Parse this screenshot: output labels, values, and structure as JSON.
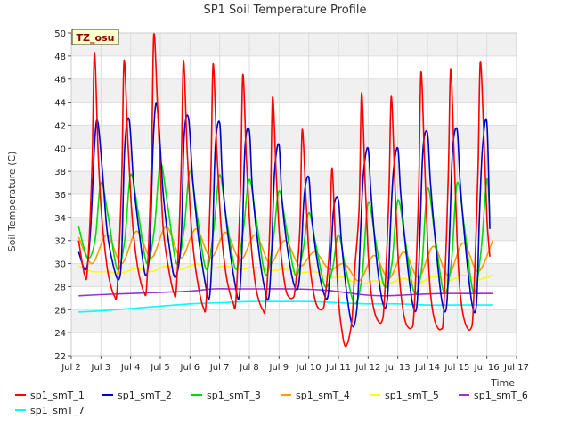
{
  "chart_data": {
    "type": "line",
    "title": "SP1 Soil Temperature Profile",
    "xlabel": "Time",
    "ylabel": "Soil Temperature (C)",
    "site_tag": "TZ_osu",
    "xlim": [
      2,
      17
    ],
    "ylim": [
      22,
      50
    ],
    "x_ticks": [
      {
        "value": 2,
        "label": "Jul 2"
      },
      {
        "value": 3,
        "label": "Jul 3"
      },
      {
        "value": 4,
        "label": "Jul 4"
      },
      {
        "value": 5,
        "label": "Jul 5"
      },
      {
        "value": 6,
        "label": "Jul 6"
      },
      {
        "value": 7,
        "label": "Jul 7"
      },
      {
        "value": 8,
        "label": "Jul 8"
      },
      {
        "value": 9,
        "label": "Jul 9"
      },
      {
        "value": 10,
        "label": "Jul 10"
      },
      {
        "value": 11,
        "label": "Jul 11"
      },
      {
        "value": 12,
        "label": "Jul 12"
      },
      {
        "value": 13,
        "label": "Jul 13"
      },
      {
        "value": 14,
        "label": "Jul 14"
      },
      {
        "value": 15,
        "label": "Jul 15"
      },
      {
        "value": 16,
        "label": "Jul 16"
      },
      {
        "value": 17,
        "label": "Jul 17"
      }
    ],
    "y_ticks": [
      22,
      24,
      26,
      28,
      30,
      32,
      34,
      36,
      38,
      40,
      42,
      44,
      46,
      48,
      50
    ],
    "grid": true,
    "background_bands": "alternating light gray",
    "legend_placement": "bottom",
    "series": [
      {
        "name": "sp1_smT_1",
        "color": "#ff0000",
        "x": [
          2.25,
          2.45,
          2.55,
          2.7,
          2.78,
          2.9,
          3.0,
          3.1,
          3.25,
          3.45,
          3.55,
          3.7,
          3.78,
          3.9,
          4.0,
          4.1,
          4.25,
          4.45,
          4.55,
          4.7,
          4.78,
          4.9,
          5.0,
          5.1,
          5.25,
          5.45,
          5.55,
          5.7,
          5.78,
          5.9,
          6.0,
          6.1,
          6.25,
          6.45,
          6.55,
          6.7,
          6.78,
          6.9,
          7.0,
          7.1,
          7.25,
          7.45,
          7.55,
          7.7,
          7.78,
          7.9,
          8.0,
          8.1,
          8.25,
          8.45,
          8.55,
          8.7,
          8.78,
          8.9,
          9.0,
          9.1,
          9.25,
          9.45,
          9.55,
          9.7,
          9.78,
          9.9,
          10.0,
          10.1,
          10.25,
          10.45,
          10.55,
          10.7,
          10.78,
          10.9,
          11.0,
          11.1,
          11.25,
          11.45,
          11.55,
          11.7,
          11.78,
          11.9,
          12.0,
          12.1,
          12.25,
          12.45,
          12.55,
          12.7,
          12.78,
          12.9,
          13.0,
          13.1,
          13.25,
          13.45,
          13.55,
          13.7,
          13.78,
          13.9,
          14.0,
          14.1,
          14.25,
          14.45,
          14.55,
          14.7,
          14.78,
          14.9,
          15.0,
          15.1,
          15.25,
          15.45,
          15.55,
          15.7,
          15.78,
          15.9,
          16.0,
          16.1
        ],
        "y": [
          32.0,
          29.0,
          29.7,
          38.5,
          48.3,
          40.0,
          35.0,
          32.0,
          29.0,
          27.2,
          28.0,
          37.5,
          47.6,
          41.0,
          36.0,
          32.5,
          29.5,
          27.5,
          28.5,
          39.0,
          49.9,
          44.0,
          38.0,
          33.0,
          30.0,
          27.5,
          28.2,
          38.0,
          47.6,
          40.0,
          35.0,
          31.5,
          28.5,
          26.2,
          27.0,
          37.5,
          47.3,
          40.0,
          35.0,
          31.5,
          28.5,
          26.6,
          27.0,
          36.5,
          46.4,
          39.0,
          34.0,
          30.5,
          27.5,
          26.0,
          26.5,
          34.0,
          44.4,
          38.0,
          33.0,
          30.0,
          27.5,
          27.0,
          28.0,
          33.0,
          41.6,
          36.0,
          31.0,
          28.5,
          26.5,
          26.0,
          27.0,
          31.5,
          38.3,
          32.0,
          27.0,
          24.5,
          22.8,
          25.0,
          29.5,
          35.0,
          44.8,
          37.0,
          31.0,
          27.5,
          25.5,
          24.9,
          27.0,
          36.0,
          44.5,
          37.0,
          31.0,
          27.5,
          25.0,
          24.4,
          26.0,
          36.0,
          46.6,
          39.0,
          32.0,
          27.5,
          25.0,
          24.3,
          26.0,
          37.5,
          46.9,
          39.0,
          32.0,
          27.5,
          25.0,
          24.3,
          26.5,
          38.0,
          47.5,
          41.0,
          34.0,
          30.6
        ]
      },
      {
        "name": "sp1_smT_2",
        "color": "#0000cc",
        "x": [
          2.25,
          2.5,
          2.65,
          2.8,
          2.9,
          3.05,
          3.2,
          3.4,
          3.6,
          3.7,
          3.8,
          3.95,
          4.1,
          4.3,
          4.5,
          4.65,
          4.75,
          4.85,
          4.95,
          5.1,
          5.3,
          5.5,
          5.7,
          5.8,
          5.95,
          6.1,
          6.3,
          6.5,
          6.65,
          6.75,
          6.85,
          7.0,
          7.1,
          7.3,
          7.5,
          7.65,
          7.75,
          7.85,
          8.0,
          8.1,
          8.3,
          8.5,
          8.65,
          8.75,
          8.85,
          9.0,
          9.1,
          9.3,
          9.5,
          9.65,
          9.75,
          9.85,
          10.0,
          10.1,
          10.3,
          10.5,
          10.65,
          10.75,
          10.85,
          11.0,
          11.1,
          11.3,
          11.5,
          11.65,
          11.75,
          11.85,
          12.0,
          12.1,
          12.3,
          12.5,
          12.65,
          12.75,
          12.85,
          13.0,
          13.1,
          13.3,
          13.5,
          13.65,
          13.75,
          13.85,
          14.0,
          14.1,
          14.3,
          14.5,
          14.65,
          14.75,
          14.85,
          15.0,
          15.1,
          15.3,
          15.5,
          15.65,
          15.75,
          15.85,
          16.0,
          16.1
        ],
        "y": [
          31.0,
          29.5,
          33.0,
          41.0,
          42.2,
          38.0,
          33.0,
          30.0,
          28.6,
          31.0,
          40.0,
          42.5,
          37.0,
          32.5,
          29.0,
          31.5,
          40.0,
          43.9,
          42.0,
          36.0,
          31.5,
          28.8,
          32.0,
          41.0,
          42.6,
          37.0,
          32.0,
          28.5,
          27.0,
          31.0,
          40.0,
          42.2,
          37.0,
          32.0,
          28.5,
          27.0,
          31.0,
          40.0,
          41.5,
          36.5,
          31.5,
          28.0,
          27.0,
          31.0,
          38.0,
          40.3,
          35.5,
          31.0,
          28.2,
          28.0,
          31.0,
          36.0,
          37.5,
          34.0,
          30.0,
          27.5,
          27.2,
          31.0,
          35.0,
          35.5,
          32.0,
          27.0,
          24.5,
          27.0,
          33.0,
          38.0,
          40.0,
          36.0,
          30.0,
          26.5,
          27.0,
          33.0,
          38.0,
          40.0,
          36.0,
          30.5,
          26.5,
          26.5,
          33.0,
          40.0,
          41.3,
          37.0,
          31.0,
          26.5,
          26.5,
          33.0,
          40.0,
          41.6,
          37.0,
          31.0,
          26.5,
          26.5,
          34.0,
          40.0,
          42.2,
          33.0
        ]
      },
      {
        "name": "sp1_smT_3",
        "color": "#00dd00",
        "x": [
          2.25,
          2.55,
          2.8,
          3.0,
          3.25,
          3.55,
          3.8,
          4.0,
          4.25,
          4.55,
          4.8,
          5.0,
          5.25,
          5.55,
          5.8,
          6.0,
          6.25,
          6.55,
          6.8,
          7.0,
          7.25,
          7.55,
          7.8,
          8.0,
          8.25,
          8.55,
          8.8,
          9.0,
          9.25,
          9.55,
          9.8,
          10.0,
          10.25,
          10.55,
          10.8,
          11.0,
          11.25,
          11.55,
          11.8,
          12.0,
          12.25,
          12.55,
          12.8,
          13.0,
          13.25,
          13.55,
          13.8,
          14.0,
          14.25,
          14.55,
          14.8,
          15.0,
          15.25,
          15.55,
          15.8,
          16.0,
          16.1
        ],
        "y": [
          33.2,
          30.5,
          32.0,
          37.0,
          34.0,
          29.5,
          32.0,
          37.7,
          34.5,
          30.0,
          33.0,
          38.7,
          35.0,
          30.0,
          33.0,
          38.0,
          34.0,
          29.5,
          33.0,
          37.7,
          33.5,
          29.5,
          33.0,
          37.3,
          33.5,
          29.0,
          32.0,
          36.3,
          33.0,
          29.0,
          31.0,
          34.4,
          31.5,
          28.0,
          29.5,
          32.5,
          29.5,
          26.5,
          29.0,
          35.3,
          32.0,
          28.0,
          30.0,
          35.5,
          32.0,
          27.5,
          29.5,
          36.5,
          32.5,
          27.5,
          30.0,
          37.0,
          33.0,
          27.5,
          31.0,
          37.3,
          34.0
        ]
      },
      {
        "name": "sp1_smT_4",
        "color": "#ff9900",
        "x": [
          2.25,
          2.7,
          3.2,
          3.7,
          4.2,
          4.7,
          5.2,
          5.7,
          6.2,
          6.7,
          7.2,
          7.7,
          8.2,
          8.7,
          9.2,
          9.7,
          10.2,
          10.7,
          11.2,
          11.7,
          12.2,
          12.7,
          13.2,
          13.7,
          14.2,
          14.7,
          15.2,
          15.7,
          16.2
        ],
        "y": [
          32.3,
          30.0,
          32.5,
          30.0,
          32.8,
          30.5,
          33.2,
          30.5,
          33.0,
          30.5,
          32.7,
          30.3,
          32.5,
          30.0,
          32.0,
          29.8,
          31.0,
          29.5,
          30.0,
          28.5,
          30.7,
          28.7,
          31.0,
          28.8,
          31.5,
          29.0,
          31.8,
          29.3,
          32.0
        ]
      },
      {
        "name": "sp1_smT_5",
        "color": "#ffff00",
        "x": [
          2.25,
          2.7,
          3.2,
          3.7,
          4.2,
          4.7,
          5.2,
          5.7,
          6.2,
          6.7,
          7.2,
          7.7,
          8.2,
          8.7,
          9.2,
          9.7,
          10.2,
          10.7,
          11.2,
          11.7,
          12.2,
          12.7,
          13.2,
          13.7,
          14.2,
          14.7,
          15.2,
          15.7,
          16.2
        ],
        "y": [
          29.8,
          29.3,
          29.3,
          29.2,
          29.6,
          29.3,
          29.8,
          29.5,
          30.0,
          29.6,
          29.8,
          29.5,
          29.7,
          29.4,
          29.5,
          29.2,
          29.3,
          28.8,
          28.8,
          28.2,
          28.5,
          28.3,
          28.7,
          28.3,
          28.9,
          28.5,
          29.0,
          28.6,
          29.0
        ]
      },
      {
        "name": "sp1_smT_6",
        "color": "#9933cc",
        "x": [
          2.25,
          3.0,
          4.0,
          5.0,
          6.0,
          6.8,
          7.5,
          8.5,
          9.5,
          10.5,
          11.2,
          11.8,
          12.5,
          13.5,
          14.5,
          15.5,
          16.2
        ],
        "y": [
          27.2,
          27.3,
          27.4,
          27.5,
          27.6,
          27.8,
          27.8,
          27.8,
          27.8,
          27.7,
          27.5,
          27.3,
          27.2,
          27.3,
          27.4,
          27.4,
          27.4
        ]
      },
      {
        "name": "sp1_smT_7",
        "color": "#00ffff",
        "x": [
          2.25,
          3.0,
          4.0,
          5.0,
          6.0,
          7.0,
          8.0,
          9.0,
          10.0,
          11.0,
          12.0,
          13.0,
          14.0,
          15.0,
          16.2
        ],
        "y": [
          25.8,
          25.9,
          26.1,
          26.3,
          26.5,
          26.6,
          26.7,
          26.7,
          26.7,
          26.6,
          26.5,
          26.5,
          26.4,
          26.4,
          26.4
        ]
      }
    ]
  }
}
